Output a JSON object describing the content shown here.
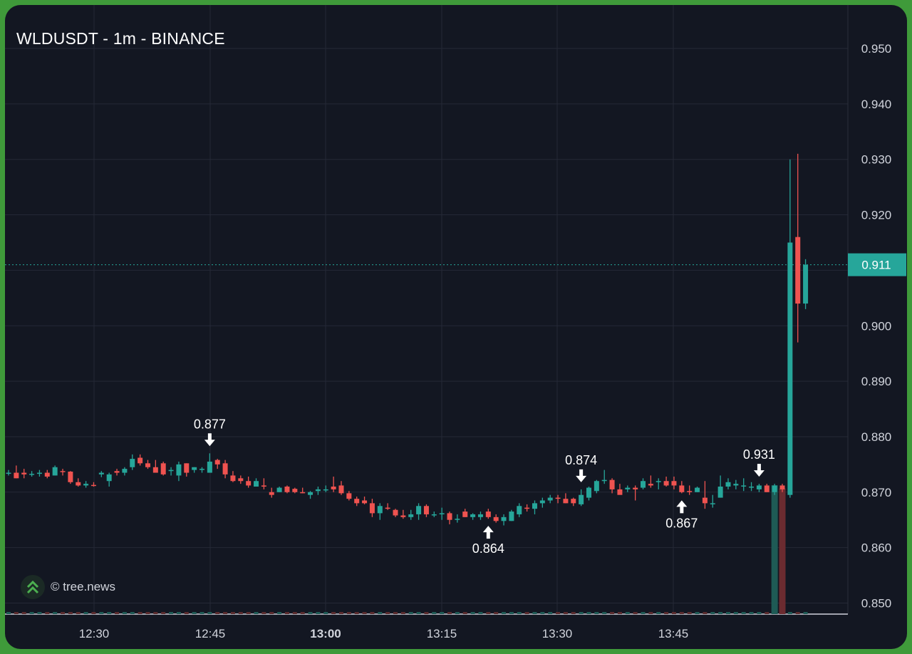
{
  "chart_data": {
    "type": "candlestick",
    "title": "WLDUSDT - 1m - BINANCE",
    "watermark": "© tree.news",
    "current_price": 0.911,
    "colors": {
      "background": "#131722",
      "up": "#26a69a",
      "down": "#ef5350",
      "grid": "#242836",
      "axis_text": "#d1d4dc",
      "price_tag": "#26a69a"
    },
    "yaxis": {
      "min": 0.85,
      "max": 0.95,
      "ticks": [
        "0.950",
        "0.940",
        "0.930",
        "0.920",
        "0.910",
        "0.900",
        "0.890",
        "0.880",
        "0.870",
        "0.860",
        "0.850"
      ]
    },
    "xaxis": {
      "ticks": [
        {
          "label": "12:30",
          "bold": false
        },
        {
          "label": "12:45",
          "bold": false
        },
        {
          "label": "13:00",
          "bold": true
        },
        {
          "label": "13:15",
          "bold": false
        },
        {
          "label": "13:30",
          "bold": false
        },
        {
          "label": "13:45",
          "bold": false
        }
      ]
    },
    "annotations": [
      {
        "label": "0.877",
        "bar": 26,
        "direction": "down"
      },
      {
        "label": "0.864",
        "bar": 62,
        "direction": "up"
      },
      {
        "label": "0.874",
        "bar": 74,
        "direction": "down"
      },
      {
        "label": "0.867",
        "bar": 87,
        "direction": "up"
      },
      {
        "label": "0.931",
        "bar": 97,
        "direction": "down"
      }
    ],
    "candles": [
      [
        0.8735,
        0.874,
        0.873,
        0.8735
      ],
      [
        0.8735,
        0.8748,
        0.8725,
        0.8725
      ],
      [
        0.8735,
        0.8742,
        0.8725,
        0.8732
      ],
      [
        0.8732,
        0.8738,
        0.8728,
        0.8733
      ],
      [
        0.8733,
        0.874,
        0.8728,
        0.8735
      ],
      [
        0.8735,
        0.874,
        0.8725,
        0.8728
      ],
      [
        0.873,
        0.8748,
        0.873,
        0.8745
      ],
      [
        0.8738,
        0.8742,
        0.873,
        0.8737
      ],
      [
        0.8737,
        0.8738,
        0.8715,
        0.8718
      ],
      [
        0.8718,
        0.8725,
        0.871,
        0.8712
      ],
      [
        0.8712,
        0.872,
        0.8708,
        0.8715
      ],
      [
        0.8713,
        0.8718,
        0.871,
        0.8712
      ],
      [
        0.8732,
        0.8738,
        0.8727,
        0.8735
      ],
      [
        0.872,
        0.8735,
        0.871,
        0.8732
      ],
      [
        0.8738,
        0.8742,
        0.873,
        0.8735
      ],
      [
        0.8735,
        0.8745,
        0.873,
        0.8742
      ],
      [
        0.8745,
        0.8768,
        0.874,
        0.876
      ],
      [
        0.8762,
        0.8768,
        0.8748,
        0.8752
      ],
      [
        0.8752,
        0.8758,
        0.8742,
        0.8745
      ],
      [
        0.8745,
        0.8758,
        0.8738,
        0.8735
      ],
      [
        0.8752,
        0.8755,
        0.873,
        0.8732
      ],
      [
        0.8738,
        0.8745,
        0.873,
        0.874
      ],
      [
        0.873,
        0.8755,
        0.872,
        0.875
      ],
      [
        0.8752,
        0.8752,
        0.8728,
        0.8735
      ],
      [
        0.874,
        0.8745,
        0.8735,
        0.8745
      ],
      [
        0.8742,
        0.8745,
        0.8735,
        0.8742
      ],
      [
        0.8735,
        0.877,
        0.8735,
        0.8755
      ],
      [
        0.8758,
        0.876,
        0.8742,
        0.875
      ],
      [
        0.8752,
        0.8758,
        0.8725,
        0.8732
      ],
      [
        0.873,
        0.8738,
        0.8718,
        0.872
      ],
      [
        0.8725,
        0.873,
        0.8715,
        0.872
      ],
      [
        0.872,
        0.8728,
        0.8708,
        0.8712
      ],
      [
        0.871,
        0.8725,
        0.871,
        0.872
      ],
      [
        0.8712,
        0.8725,
        0.8705,
        0.871
      ],
      [
        0.87,
        0.8708,
        0.869,
        0.8695
      ],
      [
        0.87,
        0.871,
        0.87,
        0.8708
      ],
      [
        0.871,
        0.8712,
        0.8698,
        0.87
      ],
      [
        0.8706,
        0.8708,
        0.8698,
        0.87
      ],
      [
        0.87,
        0.8708,
        0.8698,
        0.8698
      ],
      [
        0.8695,
        0.8702,
        0.8688,
        0.87
      ],
      [
        0.8702,
        0.871,
        0.8695,
        0.8705
      ],
      [
        0.8705,
        0.8712,
        0.87,
        0.8705
      ],
      [
        0.871,
        0.8728,
        0.87,
        0.8705
      ],
      [
        0.8712,
        0.872,
        0.8695,
        0.8698
      ],
      [
        0.8698,
        0.8702,
        0.8685,
        0.8688
      ],
      [
        0.8688,
        0.8692,
        0.8675,
        0.868
      ],
      [
        0.8685,
        0.8692,
        0.8678,
        0.868
      ],
      [
        0.868,
        0.8688,
        0.8655,
        0.8662
      ],
      [
        0.8662,
        0.868,
        0.865,
        0.8675
      ],
      [
        0.8672,
        0.868,
        0.8668,
        0.867
      ],
      [
        0.8668,
        0.867,
        0.8655,
        0.8658
      ],
      [
        0.8658,
        0.8668,
        0.8652,
        0.8655
      ],
      [
        0.8655,
        0.8668,
        0.865,
        0.866
      ],
      [
        0.866,
        0.868,
        0.865,
        0.8675
      ],
      [
        0.8675,
        0.8678,
        0.8655,
        0.866
      ],
      [
        0.8658,
        0.8665,
        0.8655,
        0.866
      ],
      [
        0.866,
        0.8672,
        0.865,
        0.8662
      ],
      [
        0.8662,
        0.8665,
        0.8642,
        0.865
      ],
      [
        0.865,
        0.866,
        0.8645,
        0.8652
      ],
      [
        0.8665,
        0.867,
        0.8655,
        0.8655
      ],
      [
        0.8655,
        0.8662,
        0.865,
        0.866
      ],
      [
        0.8655,
        0.8665,
        0.865,
        0.866
      ],
      [
        0.8665,
        0.867,
        0.8652,
        0.8655
      ],
      [
        0.8655,
        0.866,
        0.8645,
        0.8648
      ],
      [
        0.8648,
        0.866,
        0.864,
        0.8655
      ],
      [
        0.8648,
        0.8668,
        0.8648,
        0.8665
      ],
      [
        0.866,
        0.868,
        0.8655,
        0.8675
      ],
      [
        0.8672,
        0.8678,
        0.8665,
        0.867
      ],
      [
        0.867,
        0.8685,
        0.866,
        0.868
      ],
      [
        0.868,
        0.869,
        0.8672,
        0.8685
      ],
      [
        0.8685,
        0.8695,
        0.868,
        0.869
      ],
      [
        0.869,
        0.8695,
        0.868,
        0.8688
      ],
      [
        0.8688,
        0.8698,
        0.868,
        0.868
      ],
      [
        0.8688,
        0.869,
        0.8675,
        0.868
      ],
      [
        0.8678,
        0.8705,
        0.8675,
        0.8695
      ],
      [
        0.869,
        0.871,
        0.8685,
        0.8708
      ],
      [
        0.8702,
        0.8722,
        0.8698,
        0.872
      ],
      [
        0.872,
        0.874,
        0.8715,
        0.8722
      ],
      [
        0.8722,
        0.8725,
        0.8698,
        0.8705
      ],
      [
        0.8705,
        0.8715,
        0.8698,
        0.8695
      ],
      [
        0.8705,
        0.8712,
        0.87,
        0.8708
      ],
      [
        0.8708,
        0.8712,
        0.8685,
        0.8705
      ],
      [
        0.8708,
        0.8725,
        0.8705,
        0.872
      ],
      [
        0.8715,
        0.873,
        0.8708,
        0.8712
      ],
      [
        0.8718,
        0.8725,
        0.8705,
        0.872
      ],
      [
        0.872,
        0.8728,
        0.871,
        0.8712
      ],
      [
        0.872,
        0.8728,
        0.8705,
        0.8712
      ],
      [
        0.8712,
        0.872,
        0.8698,
        0.87
      ],
      [
        0.8702,
        0.8712,
        0.8695,
        0.87
      ],
      [
        0.87,
        0.871,
        0.87,
        0.8708
      ],
      [
        0.869,
        0.872,
        0.867,
        0.868
      ],
      [
        0.868,
        0.8695,
        0.8672,
        0.868
      ],
      [
        0.869,
        0.873,
        0.869,
        0.871
      ],
      [
        0.871,
        0.8725,
        0.8705,
        0.8718
      ],
      [
        0.8712,
        0.8722,
        0.8705,
        0.8715
      ],
      [
        0.8712,
        0.8725,
        0.8702,
        0.8712
      ],
      [
        0.871,
        0.8718,
        0.8702,
        0.871
      ],
      [
        0.8705,
        0.8715,
        0.87,
        0.8712
      ],
      [
        0.8712,
        0.8715,
        0.87,
        0.87
      ],
      [
        0.87,
        0.8715,
        0.8695,
        0.8712
      ],
      [
        0.8712,
        0.8715,
        0.87,
        0.8705
      ],
      [
        0.8695,
        0.93,
        0.869,
        0.915
      ],
      [
        0.916,
        0.931,
        0.897,
        0.904
      ],
      [
        0.904,
        0.912,
        0.903,
        0.911
      ]
    ],
    "volume_bars": [
      {
        "bar": 99,
        "up": true,
        "volume_fraction": 0.2
      },
      {
        "bar": 100,
        "up": false,
        "volume_fraction": 0.195
      }
    ]
  }
}
